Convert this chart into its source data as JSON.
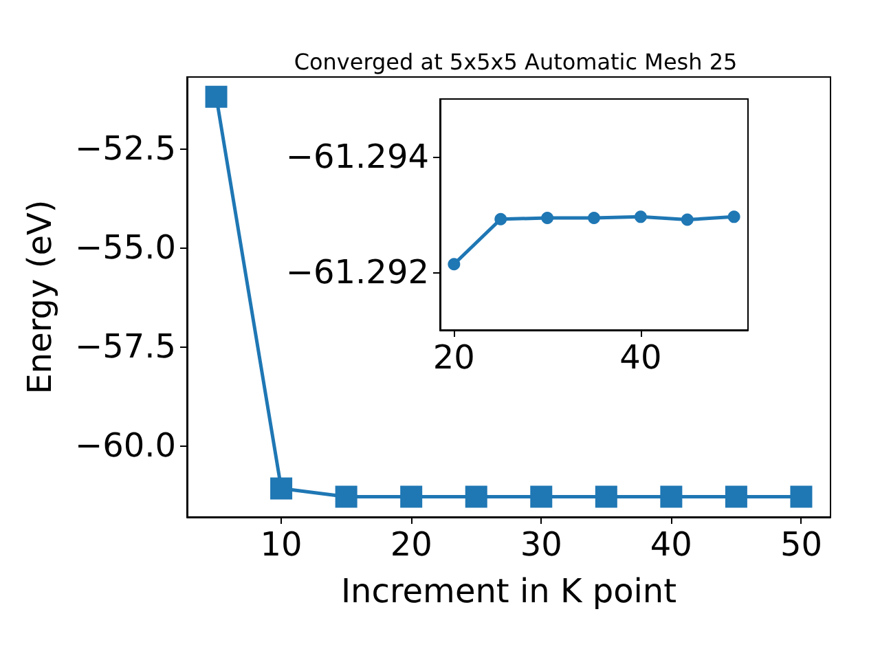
{
  "chart_data": [
    {
      "type": "line",
      "title": "Converged at 5x5x5 Automatic Mesh 25",
      "xlabel": "Increment in K point",
      "ylabel": "Energy (eV)",
      "x": [
        5,
        10,
        15,
        20,
        25,
        30,
        35,
        40,
        45,
        50
      ],
      "series": [
        {
          "color": "#1f77b4",
          "values": [
            -51.2,
            -61.08,
            -61.29,
            -61.29,
            -61.29,
            -61.29,
            -61.29,
            -61.29,
            -61.29,
            -61.29
          ]
        }
      ],
      "xlim": [
        2.75,
        52.25
      ],
      "xticks": [
        10,
        20,
        30,
        40,
        50
      ],
      "ylim": [
        -61.8,
        -50.7
      ],
      "yticks": [
        {
          "value": -60,
          "label": "−60.0"
        },
        {
          "value": -57.5,
          "label": "−57.5"
        },
        {
          "value": -55,
          "label": "−55.0"
        },
        {
          "value": -52.5,
          "label": "−52.5"
        }
      ],
      "marker": "square",
      "grid": false
    },
    {
      "type": "line",
      "x": [
        20,
        25,
        30,
        35,
        40,
        45,
        50
      ],
      "series": [
        {
          "color": "#1f77b4",
          "values": [
            -61.29214,
            -61.29292,
            -61.29294,
            -61.29294,
            -61.29296,
            -61.29291,
            -61.29296
          ]
        }
      ],
      "xlim": [
        18.5,
        51.5
      ],
      "xticks": [
        20,
        40
      ],
      "ylim": [
        -61.291,
        -61.295
      ],
      "yticks": [
        {
          "value": -61.292,
          "label": "−61.292"
        },
        {
          "value": -61.294,
          "label": "−61.294"
        }
      ],
      "marker": "circle",
      "grid": false
    }
  ]
}
